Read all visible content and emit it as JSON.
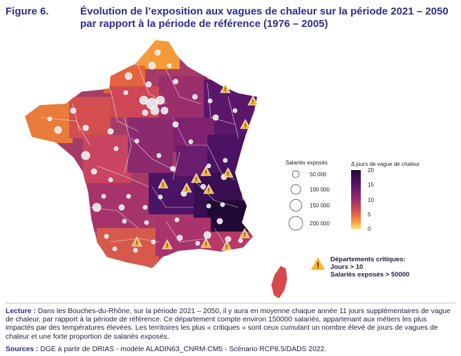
{
  "figure": {
    "label": "Figure 6.",
    "title": "Évolution de l’exposition aux vagues de chaleur sur la période 2021 – 2050 par rapport à la période de référence (1976 – 2005)"
  },
  "legend": {
    "size_title": "Salariés exposés",
    "size_labels": [
      "50 000",
      "100 000",
      "150 000",
      "200 000"
    ],
    "color_title": "Δ jours de vague de chaleur",
    "color_ticks": [
      "20",
      "15",
      "10",
      "5",
      "0"
    ],
    "color_scale": [
      "#2a0a3c",
      "#5a1466",
      "#a02c6e",
      "#e05a48",
      "#f7a13a",
      "#fde68a"
    ],
    "critical_title": "Départements critiques:",
    "critical_line1": "Jours > 10",
    "critical_line2": "Salariés exposés > 50000"
  },
  "footer": {
    "lecture_label": "Lecture :",
    "lecture_text": "Dans les Bouches-du-Rhône, sur la période 2021 – 2050, il y aura en moyenne chaque année 11 jours supplémentaires de vague de chaleur, par rapport à la période de référence. Ce département compte environ 150000 salariés, appartenant aux métiers les plus impactés par des températures élevées. Les territoires les plus « critiques » sont ceux cumulant un nombre élevé de jours de vagues de chaleur et une forte proportion de salariés exposés.",
    "sources_label": "Sources :",
    "sources_text": "DGE à partir de DRIAS - modèle ALADIN63_CNRM-CM5 - Scénario RCP8.5/DADS 2022."
  },
  "colors": {
    "title": "#2d2d8c",
    "warning_fill": "#f5b631",
    "bubble_fill": "#ececf0",
    "region_light": "#f59a38",
    "region_mid": "#c8385c",
    "region_dark": "#3a0f52"
  }
}
